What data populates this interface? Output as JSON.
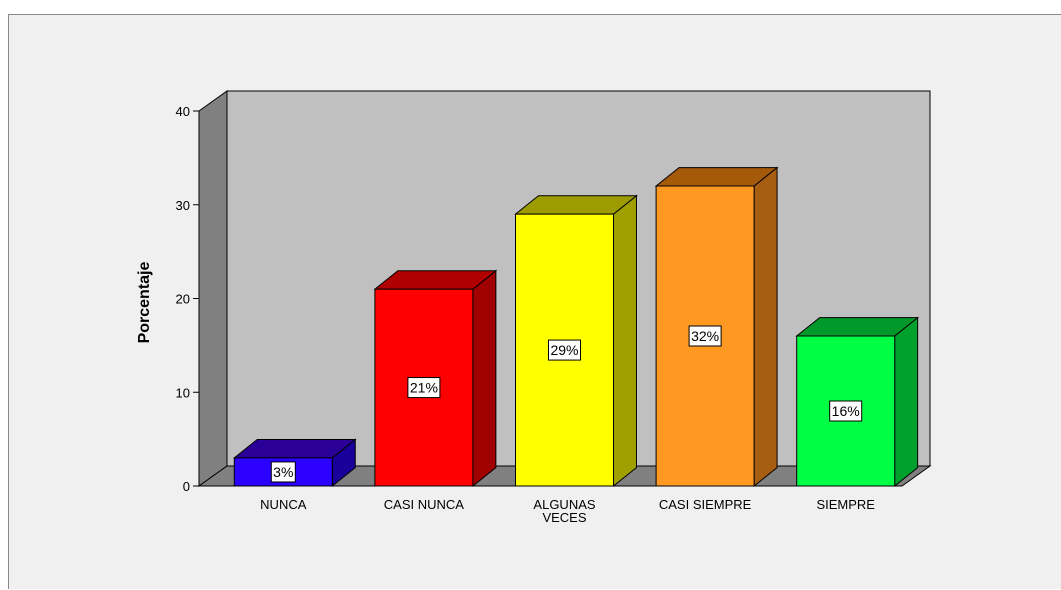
{
  "chart_data": {
    "type": "bar",
    "style": "3d",
    "title": "",
    "xlabel": "",
    "ylabel": "Porcentaje",
    "ylim": [
      0,
      40
    ],
    "yticks": [
      "0",
      "10",
      "20",
      "30",
      "40"
    ],
    "grid": false,
    "legend": "none",
    "categories": [
      [
        "NUNCA"
      ],
      [
        "CASI NUNCA"
      ],
      [
        "ALGUNAS",
        "VECES"
      ],
      [
        "CASI SIEMPRE"
      ],
      [
        "SIEMPRE"
      ]
    ],
    "values": [
      3,
      21,
      29,
      32,
      16
    ],
    "data_labels": [
      "3%",
      "21%",
      "29%",
      "32%",
      "16%"
    ],
    "colors": [
      "#2b00ff",
      "#ff0000",
      "#ffff00",
      "#ff9922",
      "#00ff44"
    ],
    "colors_side": [
      "#1a009a",
      "#a00000",
      "#a0a000",
      "#a85e10",
      "#00a02c"
    ],
    "colors_top": [
      "#2a0099",
      "#b00000",
      "#9c9c00",
      "#a55a0a",
      "#00992a"
    ],
    "back_wall_color": "#c0c0c0",
    "side_wall_color": "#808080",
    "floor_color": "#808080"
  }
}
